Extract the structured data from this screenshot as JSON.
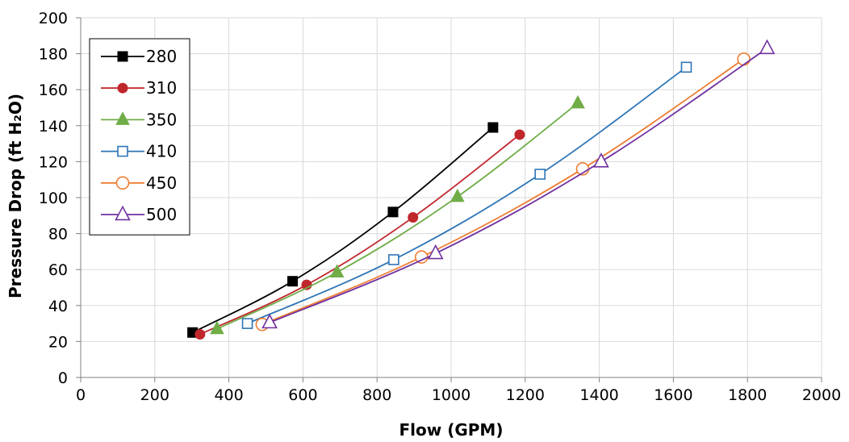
{
  "chart_data": {
    "type": "line",
    "title": "",
    "xlabel": "Flow (GPM)",
    "ylabel": "Pressure Drop (ft H₂O)",
    "xlim": [
      0,
      2000
    ],
    "ylim": [
      0,
      200
    ],
    "xticks": [
      0,
      200,
      400,
      600,
      800,
      1000,
      1200,
      1400,
      1600,
      1800,
      2000
    ],
    "yticks": [
      0,
      20,
      40,
      60,
      80,
      100,
      120,
      140,
      160,
      180,
      200
    ],
    "grid": true,
    "legend_position": "top-left",
    "series": [
      {
        "name": "280",
        "color": "#000000",
        "marker": "square-filled",
        "x": [
          302,
          572,
          843,
          1113
        ],
        "y": [
          25,
          53.5,
          92,
          139
        ]
      },
      {
        "name": "310",
        "color": "#c0272d",
        "marker": "circle-filled",
        "x": [
          322,
          610,
          897,
          1185
        ],
        "y": [
          24,
          51.5,
          89,
          135
        ]
      },
      {
        "name": "350",
        "color": "#70ad47",
        "marker": "triangle-filled",
        "x": [
          368,
          692,
          1017,
          1342
        ],
        "y": [
          27,
          58.5,
          100.5,
          152.5
        ]
      },
      {
        "name": "410",
        "color": "#2e75b6",
        "marker": "square-open",
        "x": [
          450,
          845,
          1240,
          1635
        ],
        "y": [
          30,
          65.5,
          113,
          172.5
        ]
      },
      {
        "name": "450",
        "color": "#ed7d31",
        "marker": "circle-open",
        "x": [
          490,
          920,
          1355,
          1790
        ],
        "y": [
          29.5,
          67,
          116,
          177
        ]
      },
      {
        "name": "500",
        "color": "#7030a0",
        "marker": "triangle-open",
        "x": [
          510,
          958,
          1405,
          1853
        ],
        "y": [
          30.5,
          69,
          120,
          183
        ]
      }
    ]
  }
}
